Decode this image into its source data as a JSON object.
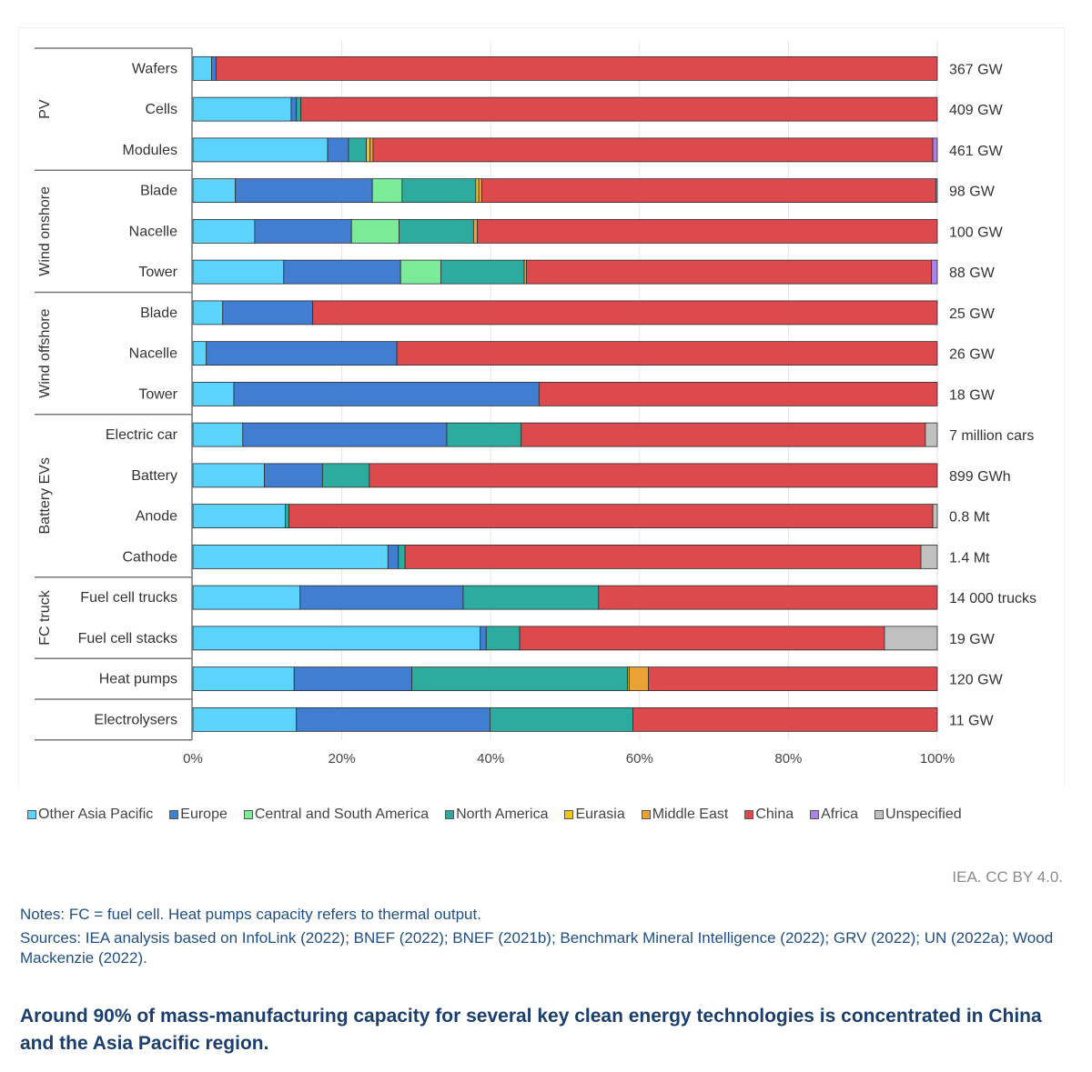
{
  "chart_data": {
    "type": "bar",
    "orientation": "horizontal",
    "stacked": true,
    "xlabel": "",
    "ylabel": "",
    "xlim": [
      0,
      100
    ],
    "x_ticks": [
      "0%",
      "20%",
      "40%",
      "60%",
      "80%",
      "100%"
    ],
    "grid": true,
    "legend_position": "bottom",
    "groups": [
      {
        "name": "PV",
        "rows": [
          0,
          2
        ]
      },
      {
        "name": "Wind onshore",
        "rows": [
          3,
          5
        ]
      },
      {
        "name": "Wind offshore",
        "rows": [
          6,
          8
        ]
      },
      {
        "name": "Battery EVs",
        "rows": [
          9,
          12
        ]
      },
      {
        "name": "FC truck",
        "rows": [
          13,
          14
        ]
      },
      {
        "name": "",
        "rows": [
          15,
          15
        ]
      },
      {
        "name": "",
        "rows": [
          16,
          16
        ]
      }
    ],
    "categories": [
      "Wafers",
      "Cells",
      "Modules",
      "Blade",
      "Nacelle",
      "Tower",
      "Blade",
      "Nacelle",
      "Tower",
      "Electric car",
      "Battery",
      "Anode",
      "Cathode",
      "Fuel cell trucks",
      "Fuel cell stacks",
      "Heat pumps",
      "Electrolysers"
    ],
    "totals": [
      "367 GW",
      "409 GW",
      "461 GW",
      "98 GW",
      "100 GW",
      "88 GW",
      "25 GW",
      "26 GW",
      "18 GW",
      "7 million cars",
      "899 GWh",
      "0.8 Mt",
      "1.4 Mt",
      "14 000 trucks",
      "19 GW",
      "120 GW",
      "11 GW"
    ],
    "series": [
      {
        "name": "Other Asia Pacific",
        "color": "#5BD3FB",
        "values": [
          2.5,
          13.2,
          18.1,
          5.7,
          8.3,
          12.2,
          4.0,
          1.8,
          5.5,
          6.7,
          9.6,
          12.4,
          26.2,
          14.4,
          38.6,
          13.6,
          13.9
        ]
      },
      {
        "name": "Europe",
        "color": "#417DD1",
        "values": [
          0.6,
          0.7,
          2.8,
          18.4,
          13.0,
          15.7,
          12.1,
          25.6,
          41.0,
          27.4,
          7.8,
          0,
          1.4,
          21.9,
          0.8,
          15.8,
          26.0
        ]
      },
      {
        "name": "Central and South America",
        "color": "#7BEB9A",
        "values": [
          0,
          0,
          0,
          4.0,
          6.4,
          5.4,
          0,
          0,
          0,
          0,
          0,
          0,
          0,
          0,
          0,
          0,
          0
        ]
      },
      {
        "name": "North America",
        "color": "#2DAB9E",
        "values": [
          0,
          0.6,
          2.4,
          9.9,
          10.0,
          11.2,
          0,
          0,
          0,
          10.0,
          6.3,
          0.5,
          0.9,
          18.2,
          4.5,
          29.0,
          19.2
        ]
      },
      {
        "name": "Eurasia",
        "color": "#F2C41C",
        "values": [
          0,
          0,
          0.5,
          0.4,
          0,
          0,
          0,
          0,
          0,
          0,
          0,
          0,
          0,
          0,
          0,
          0.2,
          0
        ]
      },
      {
        "name": "Middle East",
        "color": "#E9A233",
        "values": [
          0,
          0,
          0.4,
          0.4,
          0.5,
          0.3,
          0,
          0,
          0,
          0,
          0,
          0,
          0,
          0,
          0,
          2.6,
          0
        ]
      },
      {
        "name": "China",
        "color": "#DC4A4D",
        "values": [
          96.9,
          85.5,
          75.2,
          61.0,
          61.8,
          54.4,
          83.9,
          72.6,
          53.5,
          54.3,
          76.3,
          86.5,
          69.3,
          45.5,
          49.0,
          38.8,
          40.9
        ]
      },
      {
        "name": "Africa",
        "color": "#A784E6",
        "values": [
          0,
          0,
          0.6,
          0.2,
          0,
          0.8,
          0,
          0,
          0,
          0,
          0,
          0,
          0,
          0,
          0,
          0,
          0
        ]
      },
      {
        "name": "Unspecified",
        "color": "#C0C0C0",
        "values": [
          0,
          0,
          0,
          0,
          0,
          0,
          0,
          0,
          0,
          1.6,
          0,
          0.6,
          2.2,
          0,
          7.1,
          0,
          0
        ]
      }
    ]
  },
  "footer": {
    "credit": "IEA. CC BY 4.0.",
    "notes": "Notes: FC = fuel cell. Heat pumps capacity refers to thermal output.",
    "sources": "Sources: IEA analysis based on InfoLink (2022); BNEF (2022); BNEF (2021b); Benchmark Mineral Intelligence (2022); GRV (2022); UN (2022a); Wood Mackenzie (2022).",
    "headline": "Around 90% of mass-manufacturing capacity for several key clean energy technologies is concentrated in China and the Asia Pacific region."
  }
}
